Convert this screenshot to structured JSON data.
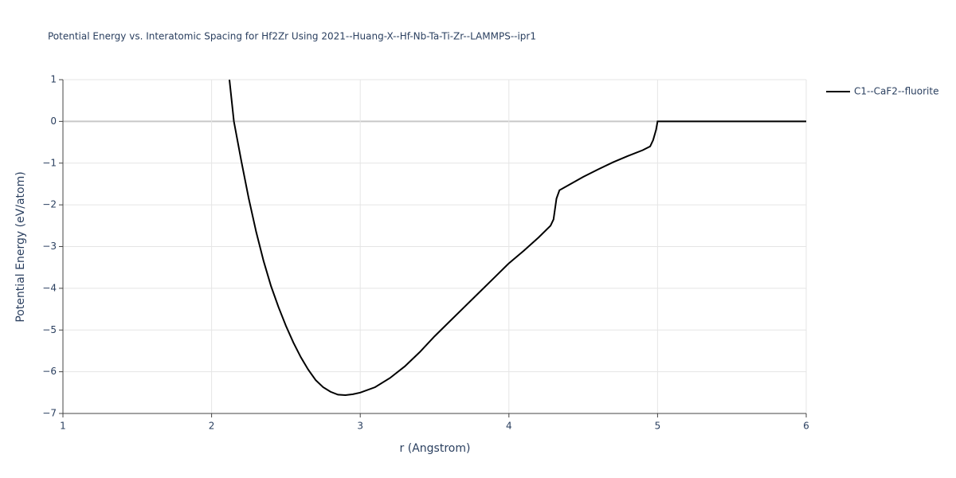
{
  "chart_data": {
    "type": "line",
    "title": "Potential Energy vs. Interatomic Spacing for Hf2Zr Using 2021--Huang-X--Hf-Nb-Ta-Ti-Zr--LAMMPS--ipr1",
    "x_label": "r (Angstrom)",
    "y_label": "Potential Energy (eV/atom)",
    "xlim": [
      1,
      6
    ],
    "ylim": [
      -7,
      1
    ],
    "xticks": [
      1,
      2,
      3,
      4,
      5,
      6
    ],
    "yticks": [
      {
        "value": -7,
        "label": "−7"
      },
      {
        "value": -6,
        "label": "−6"
      },
      {
        "value": -5,
        "label": "−5"
      },
      {
        "value": -4,
        "label": "−4"
      },
      {
        "value": -3,
        "label": "−3"
      },
      {
        "value": -2,
        "label": "−2"
      },
      {
        "value": -1,
        "label": "−1"
      },
      0,
      1
    ],
    "grid": true,
    "legend": "right",
    "x": [
      2.12,
      2.15,
      2.2,
      2.25,
      2.3,
      2.35,
      2.4,
      2.45,
      2.5,
      2.55,
      2.6,
      2.65,
      2.7,
      2.75,
      2.8,
      2.85,
      2.9,
      2.95,
      3.0,
      3.1,
      3.2,
      3.3,
      3.4,
      3.5,
      3.6,
      3.7,
      3.8,
      3.9,
      4.0,
      4.1,
      4.2,
      4.28,
      4.3,
      4.32,
      4.34,
      4.4,
      4.5,
      4.6,
      4.7,
      4.8,
      4.9,
      4.95,
      4.97,
      4.99,
      5.0,
      6.0
    ],
    "series": [
      {
        "name": "C1--CaF2--fluorite",
        "color": "#000000",
        "values": [
          1,
          0,
          -0.95,
          -1.85,
          -2.65,
          -3.35,
          -3.95,
          -4.45,
          -4.9,
          -5.3,
          -5.65,
          -5.95,
          -6.2,
          -6.37,
          -6.48,
          -6.55,
          -6.56,
          -6.54,
          -6.5,
          -6.37,
          -6.15,
          -5.87,
          -5.53,
          -5.15,
          -4.8,
          -4.45,
          -4.1,
          -3.75,
          -3.4,
          -3.1,
          -2.78,
          -2.5,
          -2.35,
          -1.85,
          -1.65,
          -1.53,
          -1.33,
          -1.15,
          -0.98,
          -0.83,
          -0.69,
          -0.6,
          -0.45,
          -0.2,
          0,
          0
        ]
      }
    ]
  }
}
